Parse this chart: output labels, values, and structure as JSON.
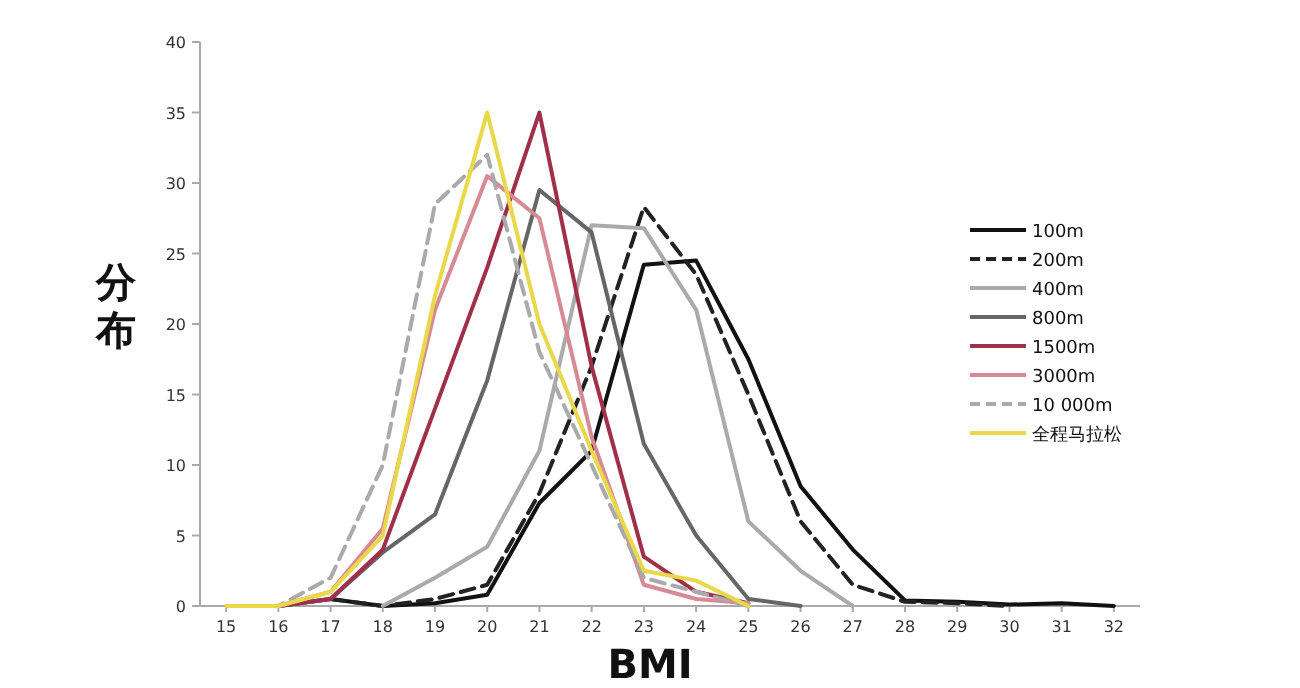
{
  "chart_data": {
    "type": "line",
    "xlabel": "BMI",
    "ylabel": "分布",
    "xlim": [
      14.5,
      32.5
    ],
    "ylim": [
      0,
      40
    ],
    "xticks": [
      15,
      16,
      17,
      18,
      19,
      20,
      21,
      22,
      23,
      24,
      25,
      26,
      27,
      28,
      29,
      30,
      31,
      32
    ],
    "yticks": [
      0,
      5,
      10,
      15,
      20,
      25,
      30,
      35,
      40
    ],
    "grid": false,
    "legend": "right",
    "marker": "none",
    "series": [
      {
        "name": "100m",
        "color": "#111111",
        "line_style": "solid",
        "x": [
          16,
          17,
          18,
          19,
          20,
          21,
          22,
          23,
          24,
          25,
          26,
          27,
          28,
          29,
          30,
          31,
          32
        ],
        "values": [
          0,
          0.5,
          0,
          0.2,
          0.8,
          7.3,
          11,
          24.2,
          24.5,
          17.5,
          8.5,
          4,
          0.4,
          0.3,
          0.1,
          0.2,
          0
        ]
      },
      {
        "name": "200m",
        "color": "#222222",
        "line_style": "dashed",
        "x": [
          17,
          18,
          19,
          20,
          21,
          22,
          23,
          24,
          25,
          26,
          27,
          28,
          29,
          30
        ],
        "values": [
          0.5,
          0,
          0.5,
          1.5,
          8,
          17,
          28.3,
          23.5,
          15,
          6,
          1.5,
          0.3,
          0.2,
          0
        ]
      },
      {
        "name": "400m",
        "color": "#aaaaaa",
        "line_style": "solid",
        "x": [
          18,
          19,
          20,
          21,
          22,
          23,
          24,
          25,
          26,
          27
        ],
        "values": [
          0,
          2,
          4.2,
          11,
          27,
          26.8,
          21,
          6,
          2.5,
          0
        ]
      },
      {
        "name": "800m",
        "color": "#666666",
        "line_style": "solid",
        "x": [
          16,
          17,
          18,
          19,
          20,
          21,
          22,
          23,
          24,
          25,
          26
        ],
        "values": [
          0,
          0.5,
          3.8,
          6.5,
          16,
          29.5,
          26.5,
          11.5,
          5,
          0.5,
          0
        ]
      },
      {
        "name": "1500m",
        "color": "#a0304a",
        "line_style": "solid",
        "x": [
          16,
          17,
          18,
          19,
          20,
          21,
          22,
          23,
          24,
          25
        ],
        "values": [
          0,
          0.5,
          4,
          14,
          24,
          35,
          17,
          3.5,
          1,
          0.2
        ]
      },
      {
        "name": "3000m",
        "color": "#d88a94",
        "line_style": "solid",
        "x": [
          16,
          17,
          18,
          19,
          20,
          21,
          22,
          23,
          24,
          25
        ],
        "values": [
          0,
          1,
          5.5,
          21,
          30.5,
          27.5,
          12,
          1.5,
          0.5,
          0.2
        ]
      },
      {
        "name": "10 000m",
        "color": "#aaaaaa",
        "line_style": "dashed",
        "x": [
          15,
          16,
          17,
          18,
          19,
          20,
          21,
          22,
          23,
          24,
          25
        ],
        "values": [
          0,
          0,
          2,
          10,
          28.5,
          32,
          18,
          10,
          2,
          1,
          0
        ]
      },
      {
        "name": "全程马拉松",
        "color": "#e8d84a",
        "line_style": "solid",
        "x": [
          15,
          16,
          17,
          18,
          19,
          20,
          21,
          22,
          23,
          24,
          25
        ],
        "values": [
          0,
          0,
          1,
          5,
          22,
          35,
          20,
          11,
          2.5,
          1.8,
          0
        ]
      }
    ]
  }
}
